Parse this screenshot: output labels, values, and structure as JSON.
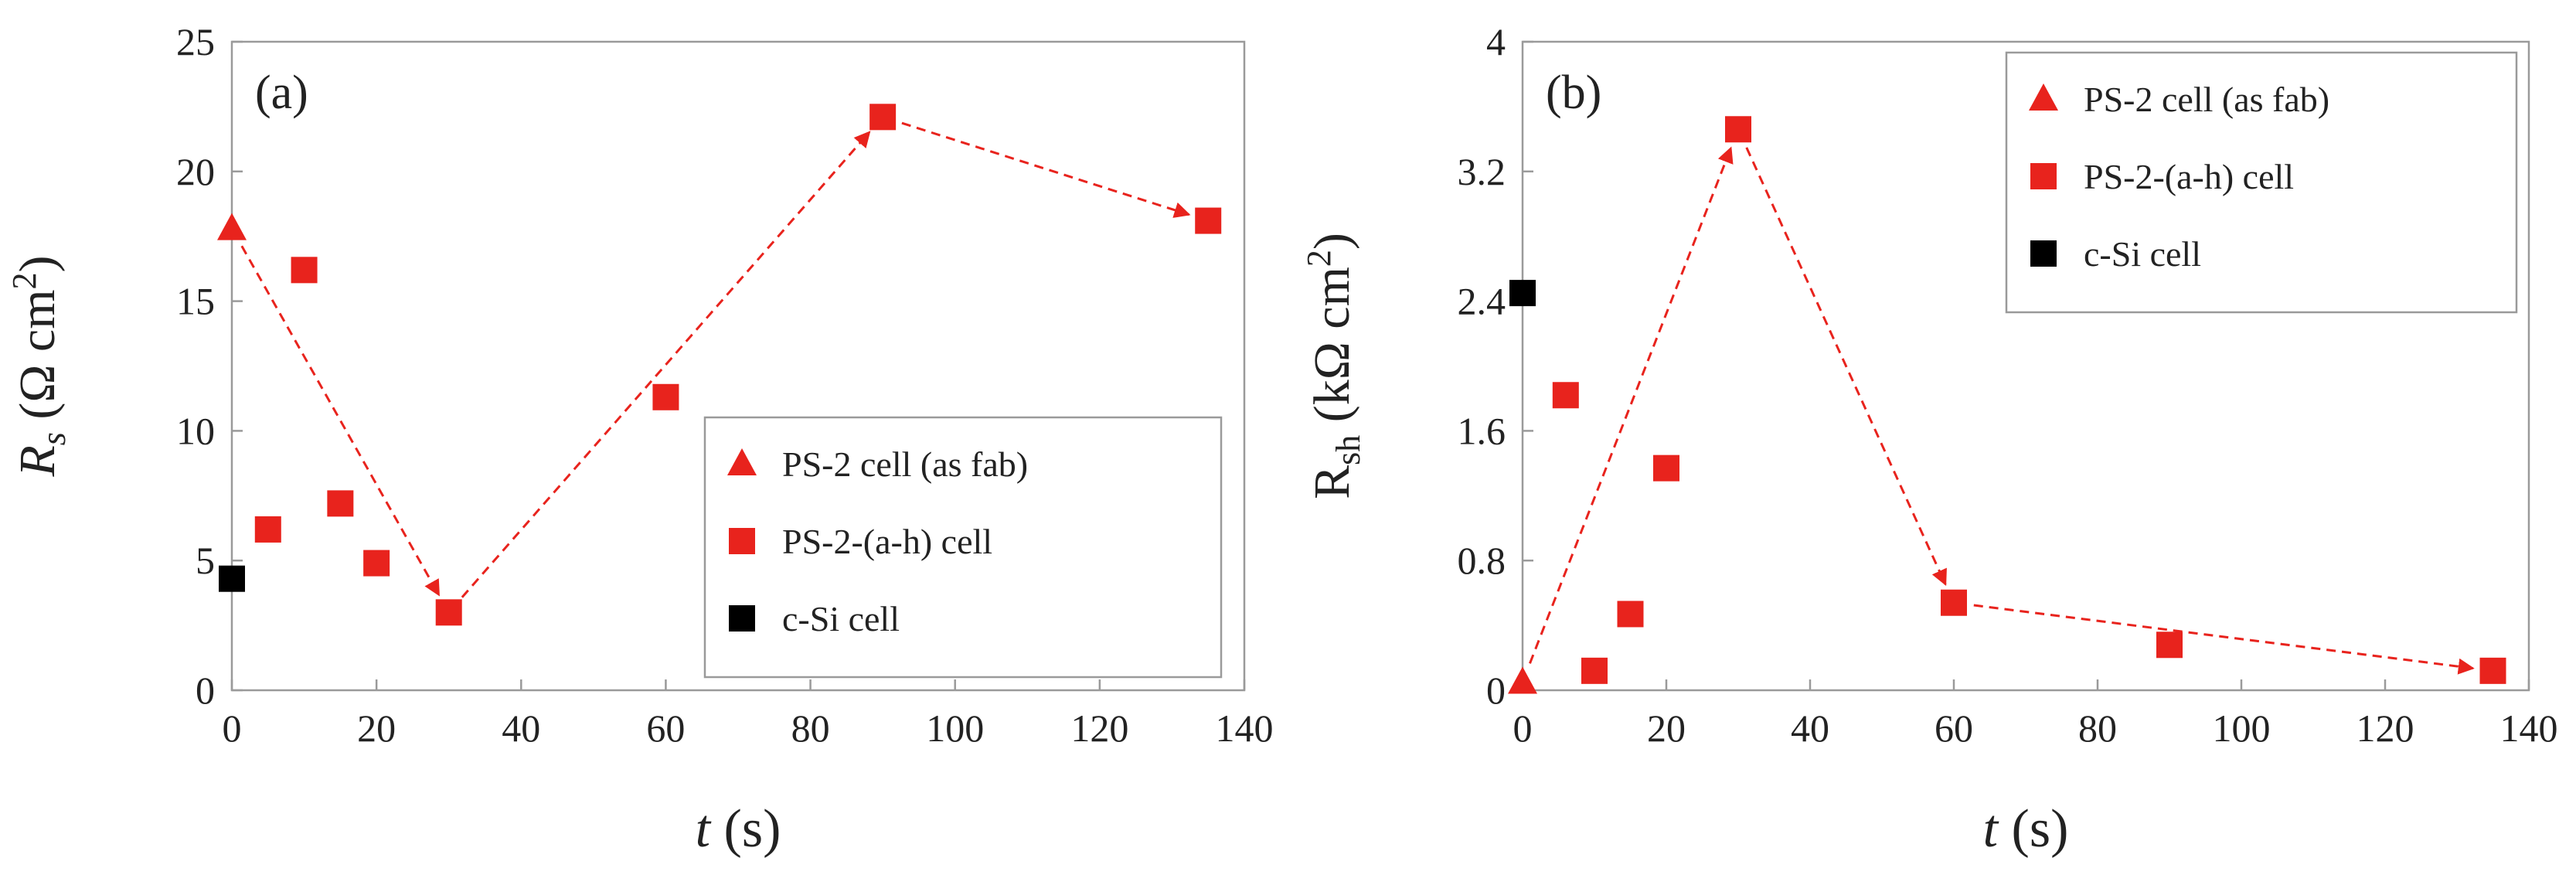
{
  "colors": {
    "series_red": "#e8231d",
    "series_black": "#000000",
    "frame": "#9a9a9a",
    "arrow": "#e8231d"
  },
  "chart_data": [
    {
      "type": "scatter",
      "panel_label": "(a)",
      "xlabel_italic": "t",
      "xlabel_unit": " (s)",
      "ylabel_base": "R",
      "ylabel_sub": "s",
      "ylabel_unit_open": " (Ω cm",
      "ylabel_sup": "2",
      "ylabel_close": ")",
      "xlim": [
        0,
        140
      ],
      "ylim": [
        0,
        25
      ],
      "x_ticks": [
        "0",
        "20",
        "40",
        "60",
        "80",
        "100",
        "120",
        "140"
      ],
      "y_ticks": [
        "0",
        "5",
        "10",
        "15",
        "20",
        "25"
      ],
      "legend_position": "bottom-right",
      "series": [
        {
          "name": "PS-2 cell (as fab)",
          "marker": "triangle",
          "color": "#e8231d",
          "points": [
            {
              "x": 0,
              "y": 17.8
            }
          ]
        },
        {
          "name": "PS-2-(a-h) cell",
          "marker": "square",
          "color": "#e8231d",
          "points": [
            {
              "x": 5,
              "y": 6.2
            },
            {
              "x": 10,
              "y": 16.2
            },
            {
              "x": 15,
              "y": 7.2
            },
            {
              "x": 20,
              "y": 4.9
            },
            {
              "x": 30,
              "y": 3.0
            },
            {
              "x": 60,
              "y": 11.3
            },
            {
              "x": 90,
              "y": 22.1
            },
            {
              "x": 135,
              "y": 18.1
            }
          ]
        },
        {
          "name": "c-Si cell",
          "marker": "square",
          "color": "#000000",
          "points": [
            {
              "x": 0,
              "y": 4.3
            }
          ]
        }
      ],
      "arrows": [
        {
          "from": [
            0,
            17.8
          ],
          "to": [
            30,
            3.0
          ]
        },
        {
          "from": [
            30,
            3.0
          ],
          "to": [
            90,
            22.1
          ]
        },
        {
          "from": [
            90,
            22.1
          ],
          "to": [
            135,
            18.1
          ]
        }
      ]
    },
    {
      "type": "scatter",
      "panel_label": "(b)",
      "xlabel_italic": "t",
      "xlabel_unit": " (s)",
      "ylabel_base": "R",
      "ylabel_sub": "sh",
      "ylabel_unit_open": " (kΩ cm",
      "ylabel_sup": "2",
      "ylabel_close": ")",
      "xlim": [
        0,
        140
      ],
      "ylim": [
        0,
        4
      ],
      "x_ticks": [
        "0",
        "20",
        "40",
        "60",
        "80",
        "100",
        "120",
        "140"
      ],
      "y_ticks": [
        "0",
        "0.8",
        "1.6",
        "2.4",
        "3.2",
        "4"
      ],
      "legend_position": "top-right",
      "series": [
        {
          "name": "PS-2 cell (as fab)",
          "marker": "triangle",
          "color": "#e8231d",
          "points": [
            {
              "x": 0,
              "y": 0.05
            }
          ]
        },
        {
          "name": "PS-2-(a-h) cell",
          "marker": "square",
          "color": "#e8231d",
          "points": [
            {
              "x": 6,
              "y": 1.82
            },
            {
              "x": 10,
              "y": 0.12
            },
            {
              "x": 15,
              "y": 0.47
            },
            {
              "x": 20,
              "y": 1.37
            },
            {
              "x": 30,
              "y": 3.46
            },
            {
              "x": 60,
              "y": 0.54
            },
            {
              "x": 90,
              "y": 0.28
            },
            {
              "x": 135,
              "y": 0.12
            }
          ]
        },
        {
          "name": "c-Si cell",
          "marker": "square",
          "color": "#000000",
          "points": [
            {
              "x": 0,
              "y": 2.45
            }
          ]
        }
      ],
      "arrows": [
        {
          "from": [
            0,
            0.05
          ],
          "to": [
            30,
            3.46
          ]
        },
        {
          "from": [
            30,
            3.46
          ],
          "to": [
            60,
            0.54
          ]
        },
        {
          "from": [
            60,
            0.54
          ],
          "to": [
            135,
            0.12
          ]
        }
      ]
    }
  ]
}
